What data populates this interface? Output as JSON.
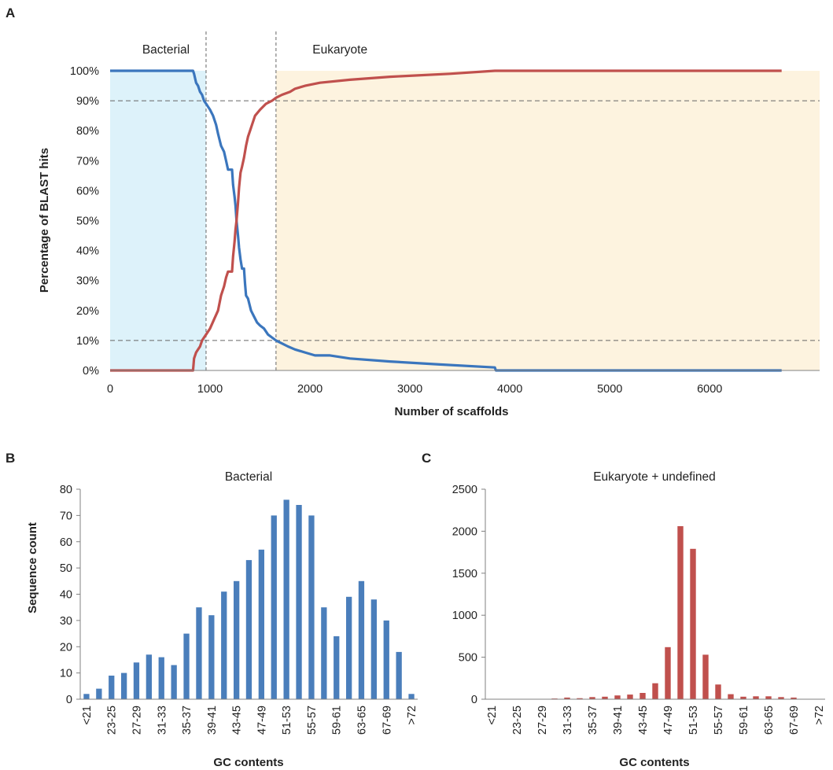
{
  "chart_data": [
    {
      "panel": "A",
      "type": "line",
      "xlabel": "Number of scaffolds",
      "ylabel": "Percentage of BLAST hits",
      "xlim": [
        0,
        7100
      ],
      "ylim": [
        0,
        100
      ],
      "xticks": [
        "0",
        "1000",
        "2000",
        "3000",
        "4000",
        "5000",
        "6000"
      ],
      "yticks": [
        "0%",
        "10%",
        "20%",
        "30%",
        "40%",
        "50%",
        "60%",
        "70%",
        "80%",
        "90%",
        "100%"
      ],
      "regions": [
        {
          "label": "Bacterial",
          "x_start": 0,
          "x_end": 960,
          "color": "#DDF2FA"
        },
        {
          "label": "Eukaryote",
          "x_start": 1660,
          "x_end": 7100,
          "color": "#FDF3DF"
        }
      ],
      "reference_lines": {
        "vertical": [
          960,
          1660
        ],
        "horizontal": [
          10,
          90
        ]
      },
      "series": [
        {
          "color": "#3B76BD",
          "points": [
            [
              0,
              100
            ],
            [
              830,
              100
            ],
            [
              840,
              99
            ],
            [
              860,
              96
            ],
            [
              880,
              95
            ],
            [
              900,
              93
            ],
            [
              920,
              92
            ],
            [
              940,
              90
            ],
            [
              960,
              89
            ],
            [
              1000,
              87
            ],
            [
              1030,
              85
            ],
            [
              1060,
              82
            ],
            [
              1080,
              79
            ],
            [
              1110,
              75
            ],
            [
              1140,
              73
            ],
            [
              1160,
              70
            ],
            [
              1180,
              67
            ],
            [
              1220,
              67
            ],
            [
              1230,
              62
            ],
            [
              1245,
              58
            ],
            [
              1255,
              55
            ],
            [
              1265,
              50
            ],
            [
              1280,
              45
            ],
            [
              1290,
              41
            ],
            [
              1305,
              37
            ],
            [
              1320,
              34
            ],
            [
              1340,
              34
            ],
            [
              1350,
              29
            ],
            [
              1360,
              25
            ],
            [
              1380,
              24
            ],
            [
              1410,
              20
            ],
            [
              1440,
              18
            ],
            [
              1470,
              16
            ],
            [
              1500,
              15
            ],
            [
              1540,
              14
            ],
            [
              1580,
              12
            ],
            [
              1620,
              11
            ],
            [
              1660,
              10
            ],
            [
              1720,
              9
            ],
            [
              1780,
              8
            ],
            [
              1850,
              7
            ],
            [
              1950,
              6
            ],
            [
              2050,
              5
            ],
            [
              2200,
              5
            ],
            [
              2400,
              4
            ],
            [
              2800,
              3
            ],
            [
              3300,
              2
            ],
            [
              3850,
              1
            ],
            [
              3860,
              0
            ],
            [
              6720,
              0
            ]
          ]
        },
        {
          "color": "#C0504D",
          "points": [
            [
              0,
              0
            ],
            [
              830,
              0
            ],
            [
              840,
              4
            ],
            [
              860,
              6
            ],
            [
              880,
              7
            ],
            [
              900,
              8
            ],
            [
              920,
              10
            ],
            [
              940,
              11
            ],
            [
              960,
              12
            ],
            [
              1000,
              14
            ],
            [
              1040,
              17
            ],
            [
              1080,
              20
            ],
            [
              1110,
              25
            ],
            [
              1140,
              28
            ],
            [
              1160,
              31
            ],
            [
              1180,
              33
            ],
            [
              1220,
              33
            ],
            [
              1230,
              38
            ],
            [
              1245,
              43
            ],
            [
              1255,
              47
            ],
            [
              1265,
              50
            ],
            [
              1280,
              56
            ],
            [
              1290,
              61
            ],
            [
              1305,
              66
            ],
            [
              1320,
              68
            ],
            [
              1340,
              71
            ],
            [
              1360,
              75
            ],
            [
              1380,
              78
            ],
            [
              1400,
              80
            ],
            [
              1420,
              82
            ],
            [
              1450,
              85
            ],
            [
              1500,
              87
            ],
            [
              1560,
              89
            ],
            [
              1620,
              90
            ],
            [
              1660,
              91
            ],
            [
              1720,
              92
            ],
            [
              1800,
              93
            ],
            [
              1850,
              94
            ],
            [
              1950,
              95
            ],
            [
              2100,
              96
            ],
            [
              2400,
              97
            ],
            [
              2800,
              98
            ],
            [
              3400,
              99
            ],
            [
              3850,
              100
            ],
            [
              6720,
              100
            ]
          ]
        }
      ]
    },
    {
      "panel": "B",
      "type": "bar",
      "title": "Bacterial",
      "xlabel": "GC contents",
      "ylabel": "Sequence count",
      "ylim": [
        0,
        80
      ],
      "yticks": [
        "0",
        "10",
        "20",
        "30",
        "40",
        "50",
        "60",
        "70",
        "80"
      ],
      "xtick_labels": [
        "<21",
        "23-25",
        "27-29",
        "31-33",
        "35-37",
        "39-41",
        "43-45",
        "47-49",
        "51-53",
        "55-57",
        "59-61",
        "63-65",
        "67-69",
        ">72"
      ],
      "bar_color": "#4A7EBB",
      "values": [
        2,
        4,
        9,
        10,
        14,
        17,
        16,
        13,
        25,
        35,
        32,
        41,
        45,
        53,
        57,
        70,
        76,
        74,
        70,
        35,
        24,
        39,
        45,
        38,
        30,
        18,
        2
      ]
    },
    {
      "panel": "C",
      "type": "bar",
      "title": "Eukaryote + undefined",
      "xlabel": "GC contents",
      "ylim": [
        0,
        2500
      ],
      "yticks": [
        "0",
        "500",
        "1000",
        "1500",
        "2000",
        "2500"
      ],
      "xtick_labels": [
        "<21",
        "23-25",
        "27-29",
        "31-33",
        "35-37",
        "39-41",
        "43-45",
        "47-49",
        "51-53",
        "55-57",
        "59-61",
        "63-65",
        "67-69",
        ">72"
      ],
      "bar_color": "#C0504D",
      "values": [
        2,
        2,
        3,
        4,
        5,
        8,
        20,
        12,
        25,
        30,
        45,
        55,
        75,
        190,
        620,
        2060,
        1790,
        530,
        175,
        60,
        30,
        35,
        35,
        25,
        20,
        5,
        2
      ]
    }
  ]
}
